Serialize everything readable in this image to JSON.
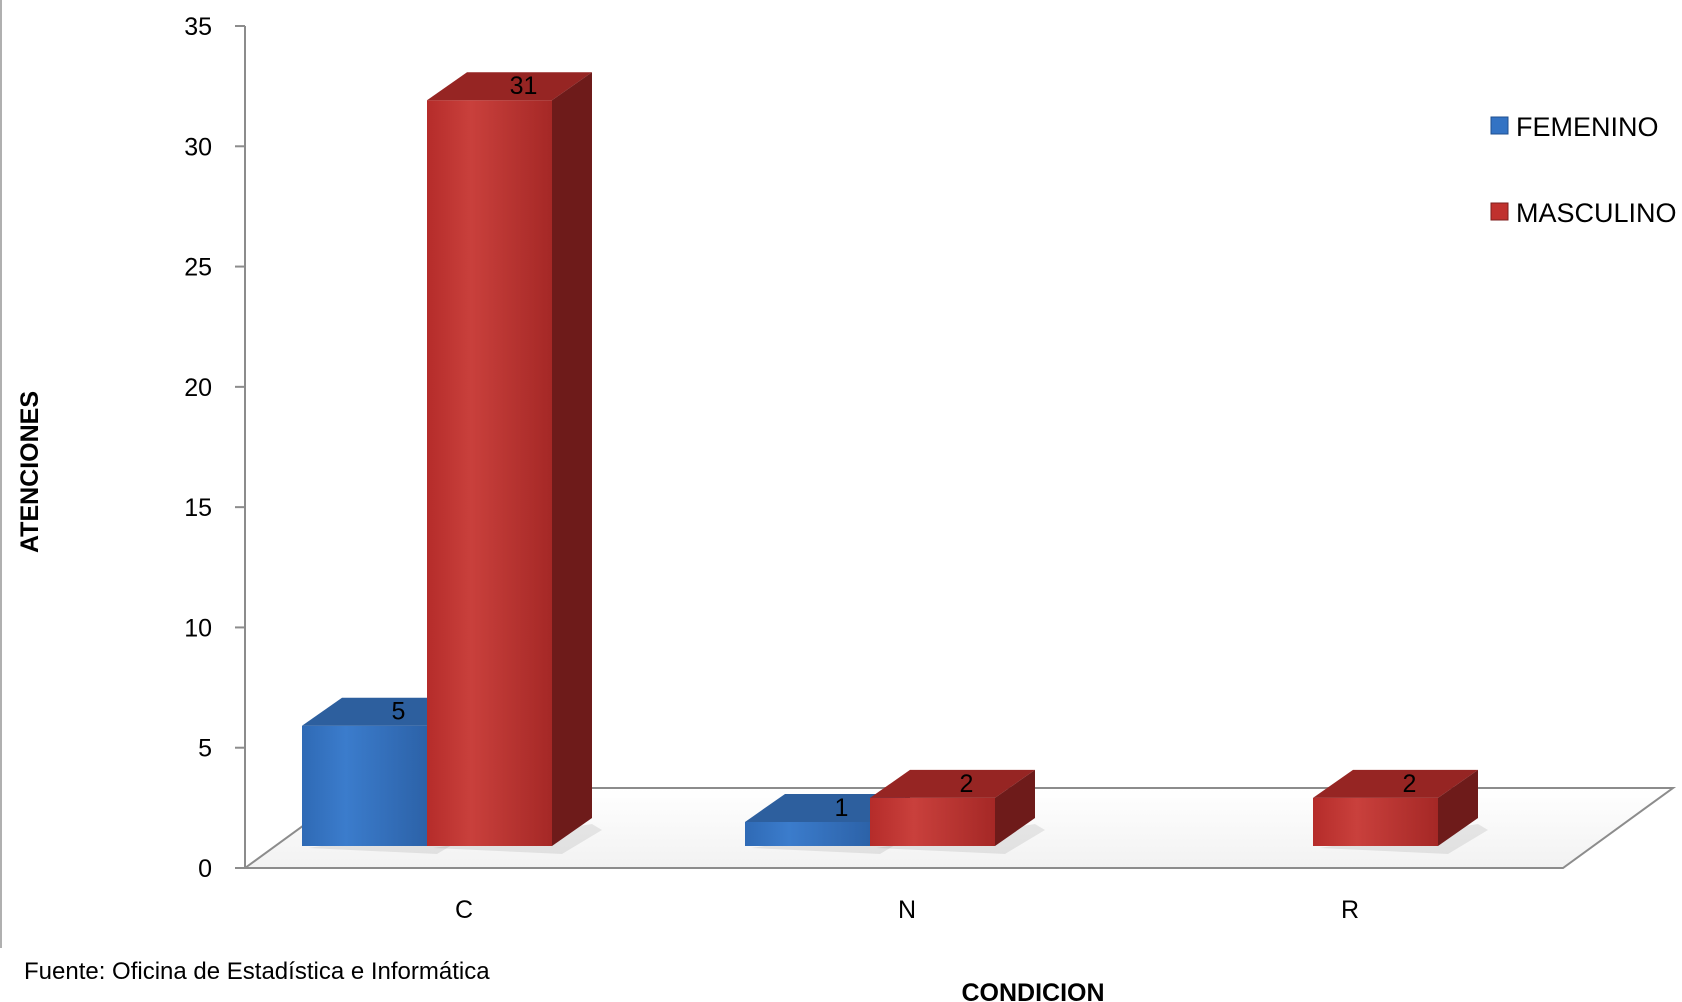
{
  "chart_data": {
    "type": "bar",
    "subtype": "3d-clustered-column",
    "categories": [
      "C",
      "N",
      "R"
    ],
    "series": [
      {
        "name": "FEMENINO",
        "values": [
          5,
          1,
          0
        ],
        "color": "#3373c4"
      },
      {
        "name": "MASCULINO",
        "values": [
          31,
          2,
          2
        ],
        "color": "#c0312e"
      }
    ],
    "data_labels": [
      [
        "5",
        "1",
        ""
      ],
      [
        "31",
        "2",
        "2"
      ]
    ],
    "title": "",
    "xlabel": "CONDICION",
    "ylabel": "ATENCIONES",
    "ylim": [
      0,
      35
    ],
    "yticks": [
      "0",
      "5",
      "10",
      "15",
      "20",
      "25",
      "30",
      "35"
    ],
    "grid": false,
    "legend_position": "right"
  },
  "source_note": "Fuente: Oficina de Estadística e Informática"
}
